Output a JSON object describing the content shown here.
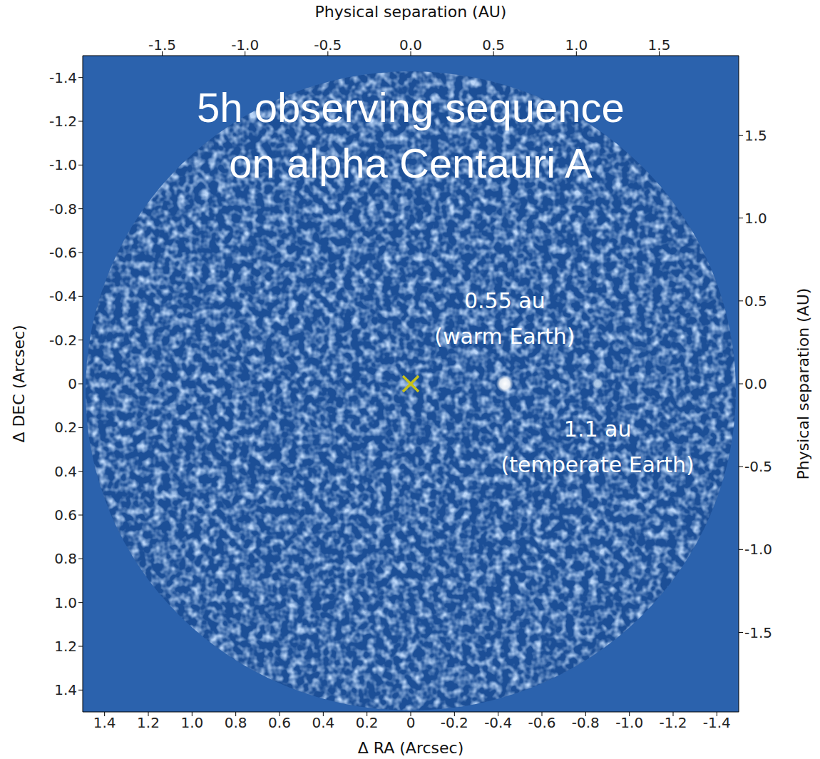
{
  "chart_data": {
    "type": "scatter",
    "title": [
      "5h observing sequence",
      "on alpha Centauri A"
    ],
    "x_label": "Δ RA (Arcsec)",
    "y_label": "Δ DEC (Arcsec)",
    "x2_label": "Physical separation (AU)",
    "y2_label": "Physical separation (AU)",
    "xlim": [
      1.5,
      -1.5
    ],
    "ylim": [
      1.5,
      -1.5
    ],
    "xticks": [
      1.4,
      1.2,
      {
        "value": 1,
        "label": "1.0"
      },
      0.8,
      0.6,
      0.4,
      0.2,
      0,
      -0.2,
      -0.4,
      -0.6,
      -0.8,
      {
        "value": -1,
        "label": "-1.0"
      },
      -1.2,
      -1.4
    ],
    "yticks": [
      -1.4,
      -1.2,
      {
        "value": -1,
        "label": "-1.0"
      },
      -0.8,
      -0.6,
      -0.4,
      -0.2,
      0,
      0.2,
      0.4,
      0.6,
      0.8,
      {
        "value": 1,
        "label": "1.0"
      },
      1.2,
      1.4
    ],
    "x2lim": [
      -1.98,
      1.98
    ],
    "x2ticks": [
      {
        "value": -1.5,
        "label": "-1.5"
      },
      {
        "value": -1,
        "label": "-1.0"
      },
      {
        "value": -0.5,
        "label": "-0.5"
      },
      {
        "value": 0,
        "label": "0.0"
      },
      {
        "value": 0.5,
        "label": "0.5"
      },
      {
        "value": 1,
        "label": "1.0"
      },
      {
        "value": 1.5,
        "label": "1.5"
      }
    ],
    "y2lim": [
      -1.98,
      1.98
    ],
    "y2ticks": [
      {
        "value": -1.5,
        "label": "-1.5"
      },
      {
        "value": -1,
        "label": "-1.0"
      },
      {
        "value": -0.5,
        "label": "-0.5"
      },
      {
        "value": 0,
        "label": "0.0"
      },
      {
        "value": 0.5,
        "label": "0.5"
      },
      {
        "value": 1,
        "label": "1.0"
      },
      {
        "value": 1.5,
        "label": "1.5"
      }
    ],
    "grid": false,
    "series": [
      {
        "marker": "x",
        "color": "#c8c21a",
        "x": [
          0
        ],
        "y": [
          0
        ]
      },
      {
        "marker": "circle",
        "colors": [
          "#ffffff",
          "#b8d2ee"
        ],
        "x": [
          -0.43,
          -0.855
        ],
        "y": [
          0,
          0
        ],
        "labels": [
          [
            "0.55 au",
            "(warm Earth)"
          ],
          [
            "1.1 au",
            "(temperate Earth)"
          ]
        ]
      }
    ]
  }
}
